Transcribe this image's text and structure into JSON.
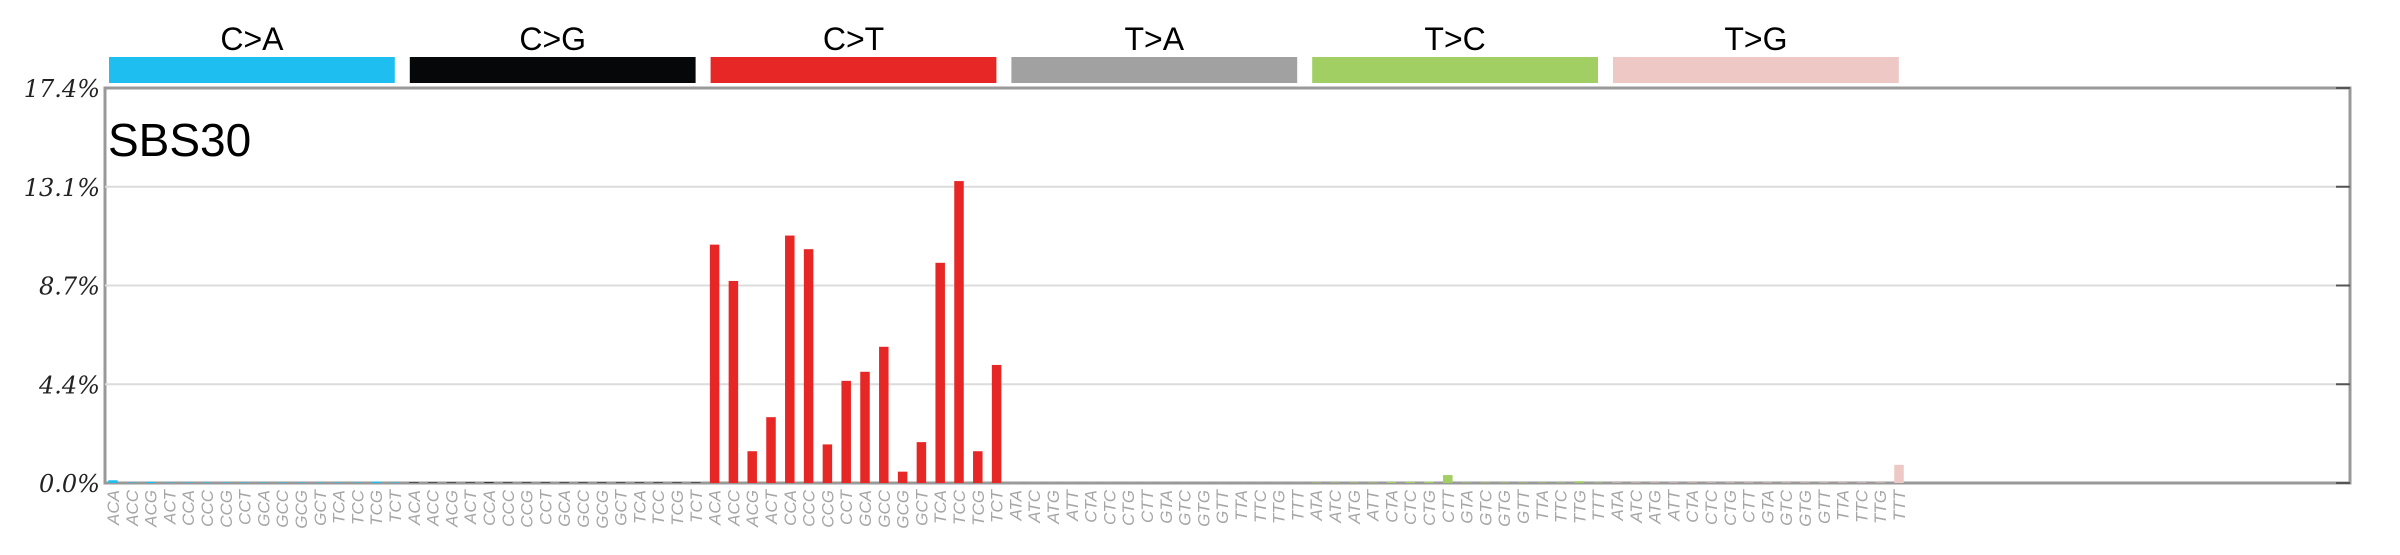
{
  "chart_data": {
    "type": "bar",
    "title": "SBS30",
    "ylim": [
      0,
      17.4
    ],
    "yticks": [
      "0.0%",
      "4.4%",
      "8.7%",
      "13.1%",
      "17.4%"
    ],
    "ytick_values": [
      0,
      4.35,
      8.7,
      13.05,
      17.4
    ],
    "grid": true,
    "groups": [
      {
        "label": "C>A",
        "color": "#1ebff0",
        "contexts": [
          "ACA",
          "ACC",
          "ACG",
          "ACT",
          "CCA",
          "CCC",
          "CCG",
          "CCT",
          "GCA",
          "GCC",
          "GCG",
          "GCT",
          "TCA",
          "TCC",
          "TCG",
          "TCT"
        ],
        "values": [
          0.12,
          0.02,
          0.05,
          0.01,
          0.02,
          0.01,
          0.01,
          0.01,
          0.02,
          0.01,
          0.01,
          0.01,
          0.02,
          0.01,
          0.06,
          0.01
        ]
      },
      {
        "label": "C>G",
        "color": "#050708",
        "contexts": [
          "ACA",
          "ACC",
          "ACG",
          "ACT",
          "CCA",
          "CCC",
          "CCG",
          "CCT",
          "GCA",
          "GCC",
          "GCG",
          "GCT",
          "TCA",
          "TCC",
          "TCG",
          "TCT"
        ],
        "values": [
          0.01,
          0.01,
          0.02,
          0.01,
          0.03,
          0.01,
          0.02,
          0.01,
          0.01,
          0.01,
          0.01,
          0.02,
          0.01,
          0.02,
          0.01,
          0.02
        ]
      },
      {
        "label": "C>T",
        "color": "#e62725",
        "contexts": [
          "ACA",
          "ACC",
          "ACG",
          "ACT",
          "CCA",
          "CCC",
          "CCG",
          "CCT",
          "GCA",
          "GCC",
          "GCG",
          "GCT",
          "TCA",
          "TCC",
          "TCG",
          "TCT"
        ],
        "values": [
          10.5,
          8.9,
          1.4,
          2.9,
          10.9,
          10.3,
          1.7,
          4.5,
          4.9,
          6.0,
          0.5,
          1.8,
          9.7,
          13.3,
          1.4,
          5.2
        ]
      },
      {
        "label": "T>A",
        "color": "#a1a1a1",
        "contexts": [
          "ATA",
          "ATC",
          "ATG",
          "ATT",
          "CTA",
          "CTC",
          "CTG",
          "CTT",
          "GTA",
          "GTC",
          "GTG",
          "GTT",
          "TTA",
          "TTC",
          "TTG",
          "TTT"
        ],
        "values": [
          0.01,
          0.01,
          0.01,
          0.01,
          0.01,
          0.01,
          0.01,
          0.01,
          0.01,
          0.01,
          0.01,
          0.01,
          0.01,
          0.01,
          0.01,
          0.01
        ]
      },
      {
        "label": "T>C",
        "color": "#a1cf64",
        "contexts": [
          "ATA",
          "ATC",
          "ATG",
          "ATT",
          "CTA",
          "CTC",
          "CTG",
          "CTT",
          "GTA",
          "GTC",
          "GTG",
          "GTT",
          "TTA",
          "TTC",
          "TTG",
          "TTT"
        ],
        "values": [
          0.02,
          0.02,
          0.02,
          0.01,
          0.05,
          0.05,
          0.06,
          0.35,
          0.02,
          0.02,
          0.02,
          0.02,
          0.02,
          0.02,
          0.08,
          0.02
        ]
      },
      {
        "label": "T>G",
        "color": "#edc8c5",
        "contexts": [
          "ATA",
          "ATC",
          "ATG",
          "ATT",
          "CTA",
          "CTC",
          "CTG",
          "CTT",
          "GTA",
          "GTC",
          "GTG",
          "GTT",
          "TTA",
          "TTC",
          "TTG",
          "TTT"
        ],
        "values": [
          0.01,
          0.01,
          0.01,
          0.01,
          0.01,
          0.01,
          0.01,
          0.01,
          0.01,
          0.01,
          0.01,
          0.01,
          0.01,
          0.01,
          0.01,
          0.8
        ]
      }
    ]
  }
}
